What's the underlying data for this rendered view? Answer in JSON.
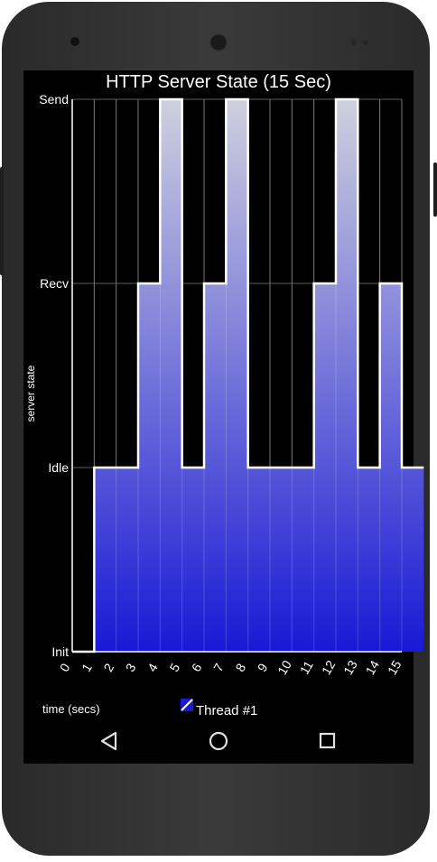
{
  "chart_data": {
    "type": "area",
    "title": "HTTP Server State (15  Sec)",
    "xlabel": "time (secs)",
    "ylabel": "server state",
    "x_ticks": [
      "0",
      "1",
      "2",
      "3",
      "4",
      "5",
      "6",
      "7",
      "8",
      "9",
      "10",
      "11",
      "12",
      "13",
      "14",
      "15"
    ],
    "y_categories": [
      "Init",
      "Idle",
      "Recv",
      "Send"
    ],
    "xlim": [
      0,
      15
    ],
    "series": [
      {
        "name": "Thread #1",
        "step_values": [
          0,
          1,
          1,
          2,
          3,
          1,
          2,
          3,
          1,
          1,
          1,
          2,
          3,
          1,
          2,
          1
        ]
      }
    ],
    "grid": true,
    "legend": "bottom",
    "colors": {
      "fill_bottom": "#1a1ad6",
      "fill_top": "#c8c8dc",
      "line": "#ffffff",
      "background": "#000000"
    }
  },
  "nav": {
    "back": "back-icon",
    "home": "home-icon",
    "recents": "recents-icon"
  }
}
